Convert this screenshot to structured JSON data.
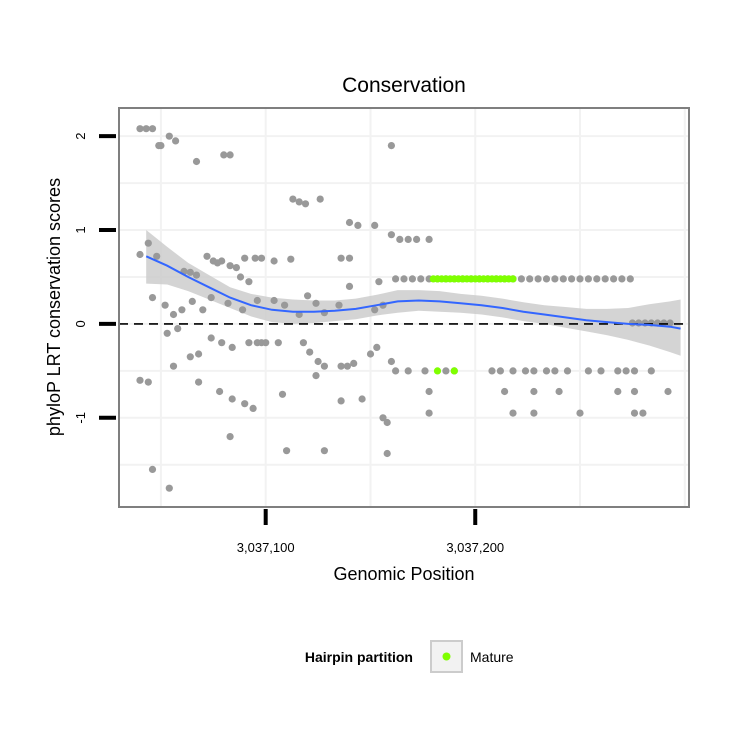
{
  "chart_data": {
    "type": "scatter",
    "title": "Conservation",
    "xlabel": "Genomic Position",
    "ylabel": "phyloP LRT conservation scores",
    "xlim": [
      3037030,
      3037302
    ],
    "ylim": [
      -1.95,
      2.3
    ],
    "x_ticks": [
      3037100,
      3037200
    ],
    "x_tick_labels": [
      "3,037,100",
      "3,037,200"
    ],
    "y_ticks": [
      -1,
      0,
      1,
      2
    ],
    "y_tick_labels": [
      "-1",
      "0",
      "1",
      "2"
    ],
    "reference_line": {
      "y": 0,
      "style": "dashed"
    },
    "grid": true,
    "legend": {
      "title": "Hairpin partition",
      "placement": "bottom",
      "entries": [
        "Mature"
      ]
    },
    "colors": {
      "points": "#999999",
      "mature": "#7fff00",
      "smooth": "#3366ff",
      "band": "#cccccc",
      "panel_border": "#7f7f7f",
      "grid": "#f2f2f2"
    },
    "series": [
      {
        "name": "",
        "color": "#999999",
        "points": [
          [
            3037040,
            2.08
          ],
          [
            3037043,
            2.08
          ],
          [
            3037046,
            2.08
          ],
          [
            3037049,
            1.9
          ],
          [
            3037050,
            1.9
          ],
          [
            3037054,
            2.0
          ],
          [
            3037057,
            1.95
          ],
          [
            3037067,
            1.73
          ],
          [
            3037080,
            1.8
          ],
          [
            3037083,
            1.8
          ],
          [
            3037113,
            1.33
          ],
          [
            3037116,
            1.3
          ],
          [
            3037119,
            1.28
          ],
          [
            3037126,
            1.33
          ],
          [
            3037140,
            1.08
          ],
          [
            3037144,
            1.05
          ],
          [
            3037152,
            1.05
          ],
          [
            3037160,
            0.95
          ],
          [
            3037164,
            0.9
          ],
          [
            3037168,
            0.9
          ],
          [
            3037172,
            0.9
          ],
          [
            3037178,
            0.9
          ],
          [
            3037160,
            1.9
          ],
          [
            3037040,
            0.74
          ],
          [
            3037044,
            0.86
          ],
          [
            3037048,
            0.72
          ],
          [
            3037072,
            0.72
          ],
          [
            3037075,
            0.67
          ],
          [
            3037079,
            0.67
          ],
          [
            3037083,
            0.62
          ],
          [
            3037086,
            0.6
          ],
          [
            3037090,
            0.7
          ],
          [
            3037095,
            0.7
          ],
          [
            3037098,
            0.7
          ],
          [
            3037104,
            0.67
          ],
          [
            3037112,
            0.69
          ],
          [
            3037136,
            0.7
          ],
          [
            3037140,
            0.7
          ],
          [
            3037061,
            0.56
          ],
          [
            3037064,
            0.55
          ],
          [
            3037067,
            0.52
          ],
          [
            3037077,
            0.65
          ],
          [
            3037088,
            0.5
          ],
          [
            3037092,
            0.45
          ],
          [
            3037096,
            0.25
          ],
          [
            3037104,
            0.25
          ],
          [
            3037109,
            0.2
          ],
          [
            3037116,
            0.1
          ],
          [
            3037120,
            0.3
          ],
          [
            3037124,
            0.22
          ],
          [
            3037128,
            0.12
          ],
          [
            3037135,
            0.2
          ],
          [
            3037140,
            0.4
          ],
          [
            3037152,
            0.15
          ],
          [
            3037154,
            0.45
          ],
          [
            3037156,
            0.2
          ],
          [
            3037046,
            0.28
          ],
          [
            3037052,
            0.2
          ],
          [
            3037056,
            0.1
          ],
          [
            3037060,
            0.15
          ],
          [
            3037065,
            0.24
          ],
          [
            3037070,
            0.15
          ],
          [
            3037074,
            0.28
          ],
          [
            3037082,
            0.22
          ],
          [
            3037089,
            0.15
          ],
          [
            3037053,
            -0.1
          ],
          [
            3037058,
            -0.05
          ],
          [
            3037064,
            -0.35
          ],
          [
            3037068,
            -0.32
          ],
          [
            3037074,
            -0.15
          ],
          [
            3037079,
            -0.2
          ],
          [
            3037084,
            -0.25
          ],
          [
            3037092,
            -0.2
          ],
          [
            3037096,
            -0.2
          ],
          [
            3037098,
            -0.2
          ],
          [
            3037100,
            -0.2
          ],
          [
            3037106,
            -0.2
          ],
          [
            3037118,
            -0.2
          ],
          [
            3037121,
            -0.3
          ],
          [
            3037125,
            -0.4
          ],
          [
            3037128,
            -0.45
          ],
          [
            3037136,
            -0.45
          ],
          [
            3037139,
            -0.45
          ],
          [
            3037142,
            -0.42
          ],
          [
            3037150,
            -0.32
          ],
          [
            3037153,
            -0.25
          ],
          [
            3037160,
            -0.4
          ],
          [
            3037040,
            -0.6
          ],
          [
            3037044,
            -0.62
          ],
          [
            3037056,
            -0.45
          ],
          [
            3037068,
            -0.62
          ],
          [
            3037078,
            -0.72
          ],
          [
            3037084,
            -0.8
          ],
          [
            3037090,
            -0.85
          ],
          [
            3037094,
            -0.9
          ],
          [
            3037108,
            -0.75
          ],
          [
            3037124,
            -0.55
          ],
          [
            3037136,
            -0.82
          ],
          [
            3037146,
            -0.8
          ],
          [
            3037156,
            -1.0
          ],
          [
            3037158,
            -1.05
          ],
          [
            3037083,
            -1.2
          ],
          [
            3037110,
            -1.35
          ],
          [
            3037128,
            -1.35
          ],
          [
            3037158,
            -1.38
          ],
          [
            3037046,
            -1.55
          ],
          [
            3037054,
            -1.75
          ],
          [
            3037162,
            0.48
          ],
          [
            3037166,
            0.48
          ],
          [
            3037170,
            0.48
          ],
          [
            3037174,
            0.48
          ],
          [
            3037178,
            0.48
          ],
          [
            3037182,
            0.48
          ],
          [
            3037186,
            0.48
          ],
          [
            3037190,
            0.48
          ],
          [
            3037194,
            0.48
          ],
          [
            3037198,
            0.48
          ],
          [
            3037202,
            0.48
          ],
          [
            3037206,
            0.48
          ],
          [
            3037210,
            0.48
          ],
          [
            3037214,
            0.48
          ],
          [
            3037218,
            0.48
          ],
          [
            3037222,
            0.48
          ],
          [
            3037226,
            0.48
          ],
          [
            3037230,
            0.48
          ],
          [
            3037234,
            0.48
          ],
          [
            3037238,
            0.48
          ],
          [
            3037242,
            0.48
          ],
          [
            3037246,
            0.48
          ],
          [
            3037250,
            0.48
          ],
          [
            3037254,
            0.48
          ],
          [
            3037258,
            0.48
          ],
          [
            3037262,
            0.48
          ],
          [
            3037266,
            0.48
          ],
          [
            3037270,
            0.48
          ],
          [
            3037274,
            0.48
          ],
          [
            3037275,
            0.01
          ],
          [
            3037278,
            0.01
          ],
          [
            3037281,
            0.01
          ],
          [
            3037284,
            0.01
          ],
          [
            3037287,
            0.01
          ],
          [
            3037290,
            0.01
          ],
          [
            3037293,
            0.01
          ],
          [
            3037162,
            -0.5
          ],
          [
            3037168,
            -0.5
          ],
          [
            3037176,
            -0.5
          ],
          [
            3037186,
            -0.5
          ],
          [
            3037190,
            -0.5
          ],
          [
            3037208,
            -0.5
          ],
          [
            3037212,
            -0.5
          ],
          [
            3037218,
            -0.5
          ],
          [
            3037224,
            -0.5
          ],
          [
            3037228,
            -0.5
          ],
          [
            3037234,
            -0.5
          ],
          [
            3037238,
            -0.5
          ],
          [
            3037244,
            -0.5
          ],
          [
            3037254,
            -0.5
          ],
          [
            3037260,
            -0.5
          ],
          [
            3037268,
            -0.5
          ],
          [
            3037272,
            -0.5
          ],
          [
            3037276,
            -0.5
          ],
          [
            3037284,
            -0.5
          ],
          [
            3037178,
            -0.72
          ],
          [
            3037214,
            -0.72
          ],
          [
            3037228,
            -0.72
          ],
          [
            3037240,
            -0.72
          ],
          [
            3037268,
            -0.72
          ],
          [
            3037276,
            -0.72
          ],
          [
            3037292,
            -0.72
          ],
          [
            3037178,
            -0.95
          ],
          [
            3037218,
            -0.95
          ],
          [
            3037228,
            -0.95
          ],
          [
            3037250,
            -0.95
          ],
          [
            3037276,
            -0.95
          ],
          [
            3037280,
            -0.95
          ]
        ]
      },
      {
        "name": "Mature",
        "color": "#7fff00",
        "points": [
          [
            3037180,
            0.48
          ],
          [
            3037182,
            0.48
          ],
          [
            3037184,
            0.48
          ],
          [
            3037186,
            0.48
          ],
          [
            3037188,
            0.48
          ],
          [
            3037190,
            0.48
          ],
          [
            3037192,
            0.48
          ],
          [
            3037194,
            0.48
          ],
          [
            3037196,
            0.48
          ],
          [
            3037198,
            0.48
          ],
          [
            3037200,
            0.48
          ],
          [
            3037202,
            0.48
          ],
          [
            3037204,
            0.48
          ],
          [
            3037206,
            0.48
          ],
          [
            3037208,
            0.48
          ],
          [
            3037210,
            0.48
          ],
          [
            3037212,
            0.48
          ],
          [
            3037214,
            0.48
          ],
          [
            3037216,
            0.48
          ],
          [
            3037218,
            0.48
          ],
          [
            3037182,
            -0.5
          ],
          [
            3037190,
            -0.5
          ]
        ]
      }
    ],
    "smooth": {
      "x": [
        3037043,
        3037053,
        3037063,
        3037073,
        3037083,
        3037093,
        3037103,
        3037113,
        3037123,
        3037133,
        3037143,
        3037153,
        3037163,
        3037173,
        3037183,
        3037193,
        3037203,
        3037213,
        3037223,
        3037233,
        3037243,
        3037253,
        3037263,
        3037273,
        3037283,
        3037293,
        3037298
      ],
      "y": [
        0.72,
        0.62,
        0.5,
        0.39,
        0.28,
        0.2,
        0.15,
        0.13,
        0.13,
        0.14,
        0.16,
        0.2,
        0.24,
        0.25,
        0.24,
        0.22,
        0.2,
        0.17,
        0.13,
        0.1,
        0.07,
        0.04,
        0.02,
        0.0,
        -0.01,
        -0.03,
        -0.05
      ],
      "lower": [
        0.43,
        0.42,
        0.35,
        0.26,
        0.17,
        0.08,
        0.02,
        0.0,
        0.01,
        0.03,
        0.05,
        0.09,
        0.12,
        0.14,
        0.13,
        0.12,
        0.1,
        0.07,
        0.03,
        0.0,
        -0.04,
        -0.08,
        -0.12,
        -0.17,
        -0.23,
        -0.3,
        -0.34
      ],
      "upper": [
        1.0,
        0.82,
        0.65,
        0.52,
        0.39,
        0.32,
        0.28,
        0.26,
        0.25,
        0.25,
        0.27,
        0.31,
        0.36,
        0.36,
        0.35,
        0.32,
        0.3,
        0.27,
        0.23,
        0.2,
        0.18,
        0.16,
        0.16,
        0.17,
        0.21,
        0.24,
        0.26
      ]
    }
  }
}
